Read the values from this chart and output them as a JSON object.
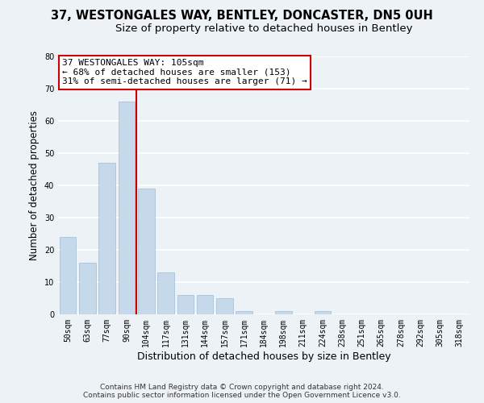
{
  "title": "37, WESTONGALES WAY, BENTLEY, DONCASTER, DN5 0UH",
  "subtitle": "Size of property relative to detached houses in Bentley",
  "xlabel": "Distribution of detached houses by size in Bentley",
  "ylabel": "Number of detached properties",
  "bar_labels": [
    "50sqm",
    "63sqm",
    "77sqm",
    "90sqm",
    "104sqm",
    "117sqm",
    "131sqm",
    "144sqm",
    "157sqm",
    "171sqm",
    "184sqm",
    "198sqm",
    "211sqm",
    "224sqm",
    "238sqm",
    "251sqm",
    "265sqm",
    "278sqm",
    "292sqm",
    "305sqm",
    "318sqm"
  ],
  "bar_values": [
    24,
    16,
    47,
    66,
    39,
    13,
    6,
    6,
    5,
    1,
    0,
    1,
    0,
    1,
    0,
    0,
    0,
    0,
    0,
    0,
    0
  ],
  "bar_color": "#c5d9ea",
  "bar_edge_color": "#a0bcd4",
  "annotation_lines": [
    "37 WESTONGALES WAY: 105sqm",
    "← 68% of detached houses are smaller (153)",
    "31% of semi-detached houses are larger (71) →"
  ],
  "annotation_box_color": "#ffffff",
  "annotation_box_edge_color": "#cc0000",
  "vline_color": "#cc0000",
  "ylim": [
    0,
    80
  ],
  "yticks": [
    0,
    10,
    20,
    30,
    40,
    50,
    60,
    70,
    80
  ],
  "vline_index": 3.5,
  "background_color": "#edf2f7",
  "grid_color": "#ffffff",
  "title_fontsize": 10.5,
  "subtitle_fontsize": 9.5,
  "xlabel_fontsize": 9,
  "ylabel_fontsize": 8.5,
  "tick_fontsize": 7,
  "annotation_fontsize": 8,
  "footer_fontsize": 6.5,
  "footer_line1": "Contains HM Land Registry data © Crown copyright and database right 2024.",
  "footer_line2": "Contains public sector information licensed under the Open Government Licence v3.0."
}
